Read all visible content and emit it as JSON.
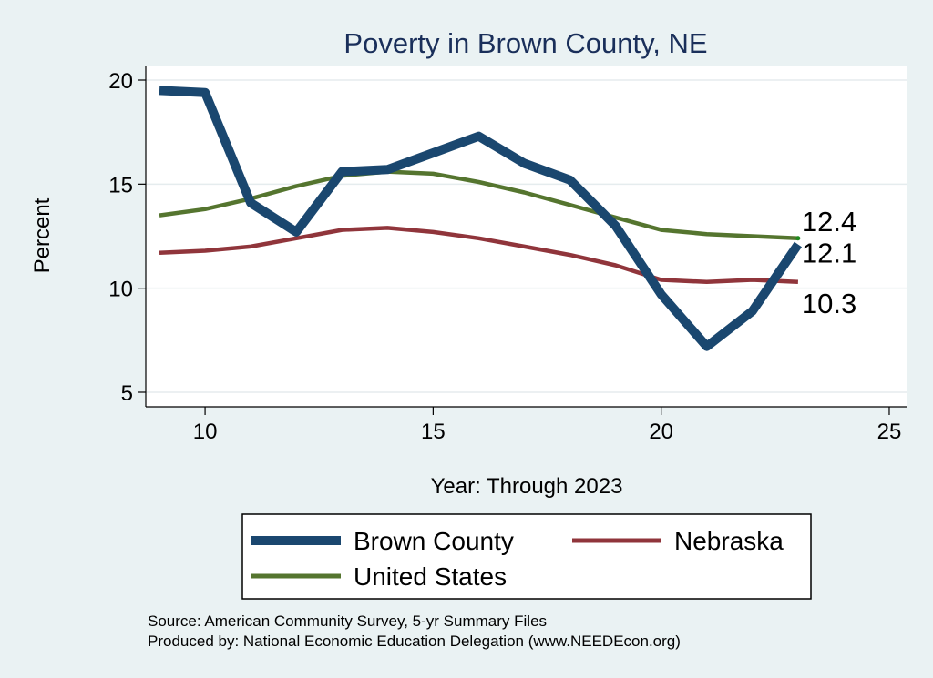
{
  "chart_data": {
    "type": "line",
    "title": "Poverty in Brown County, NE",
    "xlabel": "Year: Through 2023",
    "ylabel": "Percent",
    "xlim": [
      8.7,
      25.4
    ],
    "ylim": [
      4.3,
      20.7
    ],
    "xticks": [
      10,
      15,
      20,
      25
    ],
    "yticks": [
      5,
      10,
      15,
      20
    ],
    "x": [
      9,
      10,
      11,
      12,
      13,
      14,
      15,
      16,
      17,
      18,
      19,
      20,
      21,
      22,
      23
    ],
    "series": [
      {
        "name": "Brown County",
        "color": "#1a476f",
        "values": [
          19.5,
          19.4,
          14.1,
          12.7,
          15.6,
          15.7,
          16.5,
          17.3,
          16.0,
          15.2,
          13.0,
          9.7,
          7.2,
          8.9,
          12.1
        ],
        "end_label": "12.1"
      },
      {
        "name": "Nebraska",
        "color": "#90353b",
        "values": [
          11.7,
          11.8,
          12.0,
          12.4,
          12.8,
          12.9,
          12.7,
          12.4,
          12.0,
          11.6,
          11.1,
          10.4,
          10.3,
          10.4,
          10.3
        ],
        "end_label": "10.3"
      },
      {
        "name": "United States",
        "color": "#55752f",
        "values": [
          13.5,
          13.8,
          14.3,
          14.9,
          15.4,
          15.6,
          15.5,
          15.1,
          14.6,
          14.0,
          13.4,
          12.8,
          12.6,
          12.5,
          12.4
        ],
        "end_label": "12.4"
      }
    ],
    "legend": [
      "Brown County",
      "Nebraska",
      "United States"
    ],
    "legend_position": "bottom",
    "grid": true,
    "notes": [
      "Source: American Community Survey, 5-yr Summary Files",
      "Produced by: National Economic Education Delegation (www.NEEDEcon.org)"
    ]
  }
}
